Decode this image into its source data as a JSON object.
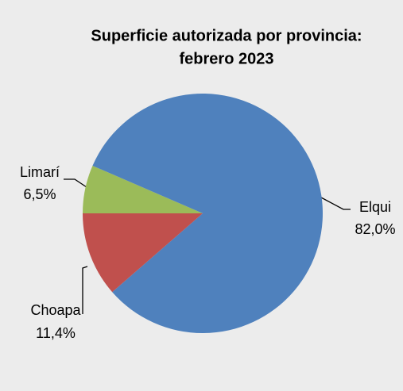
{
  "chart_data": {
    "type": "pie",
    "title": [
      "Superficie autorizada por provincia:",
      "febrero 2023"
    ],
    "categories": [
      "Limarí",
      "Elqui",
      "Choapa"
    ],
    "values": [
      6.5,
      82.0,
      11.4
    ],
    "value_labels": [
      "6,5%",
      "82,0%",
      "11,4%"
    ],
    "colors": [
      "#9bbb59",
      "#4f81bd",
      "#c0504d"
    ]
  }
}
